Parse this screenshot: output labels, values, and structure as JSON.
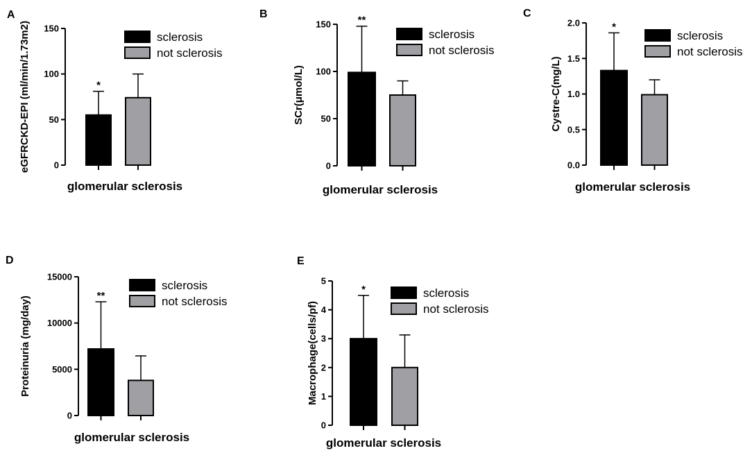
{
  "figure": {
    "background": "#ffffff",
    "colors": {
      "sclerosis": "#000000",
      "not_sclerosis": "#a0a0a4",
      "axis": "#000000"
    }
  },
  "chart_data": [
    {
      "panel": "A",
      "type": "bar",
      "ylabel": "eGFRCKD-EPI (ml/min/1.73m2)",
      "xlabel": "glomerular sclerosis",
      "ylim": [
        0,
        150
      ],
      "yticks": [
        "0",
        "50",
        "100",
        "150"
      ],
      "legend": [
        "sclerosis",
        "not sclerosis"
      ],
      "series": [
        {
          "name": "sclerosis",
          "value": 55,
          "error": 26,
          "significance": "*"
        },
        {
          "name": "not sclerosis",
          "value": 74,
          "error": 26,
          "significance": ""
        }
      ]
    },
    {
      "panel": "B",
      "type": "bar",
      "ylabel": "SCr(μmol/L)",
      "xlabel": "glomerular sclerosis",
      "ylim": [
        0,
        150
      ],
      "yticks": [
        "0",
        "50",
        "100",
        "150"
      ],
      "legend": [
        "sclerosis",
        "not sclerosis"
      ],
      "series": [
        {
          "name": "sclerosis",
          "value": 99,
          "error": 49,
          "significance": "**"
        },
        {
          "name": "not sclerosis",
          "value": 75,
          "error": 15,
          "significance": ""
        }
      ]
    },
    {
      "panel": "C",
      "type": "bar",
      "ylabel": "Cystre-C(mg/L)",
      "xlabel": "glomerular sclerosis",
      "ylim": [
        0,
        2.0
      ],
      "yticks": [
        "0.0",
        "0.5",
        "1.0",
        "1.5",
        "2.0"
      ],
      "legend": [
        "sclerosis",
        "not sclerosis"
      ],
      "series": [
        {
          "name": "sclerosis",
          "value": 1.33,
          "error": 0.53,
          "significance": "*"
        },
        {
          "name": "not sclerosis",
          "value": 0.99,
          "error": 0.21,
          "significance": ""
        }
      ]
    },
    {
      "panel": "D",
      "type": "bar",
      "ylabel": "Proteinuria (mg/day)",
      "xlabel": "glomerular sclerosis",
      "ylim": [
        0,
        15000
      ],
      "yticks": [
        "0",
        "5000",
        "10000",
        "15000"
      ],
      "legend": [
        "sclerosis",
        "not sclerosis"
      ],
      "series": [
        {
          "name": "sclerosis",
          "value": 7200,
          "error": 5100,
          "significance": "**"
        },
        {
          "name": "not sclerosis",
          "value": 3800,
          "error": 2650,
          "significance": ""
        }
      ]
    },
    {
      "panel": "E",
      "type": "bar",
      "ylabel": "Macrophage(cells/pf)",
      "xlabel": "glomerular sclerosis",
      "ylim": [
        0,
        5
      ],
      "yticks": [
        "0",
        "1",
        "2",
        "3",
        "4",
        "5"
      ],
      "legend": [
        "sclerosis",
        "not sclerosis"
      ],
      "series": [
        {
          "name": "sclerosis",
          "value": 3.0,
          "error": 1.5,
          "significance": "*"
        },
        {
          "name": "not sclerosis",
          "value": 2.0,
          "error": 1.13,
          "significance": ""
        }
      ]
    }
  ]
}
